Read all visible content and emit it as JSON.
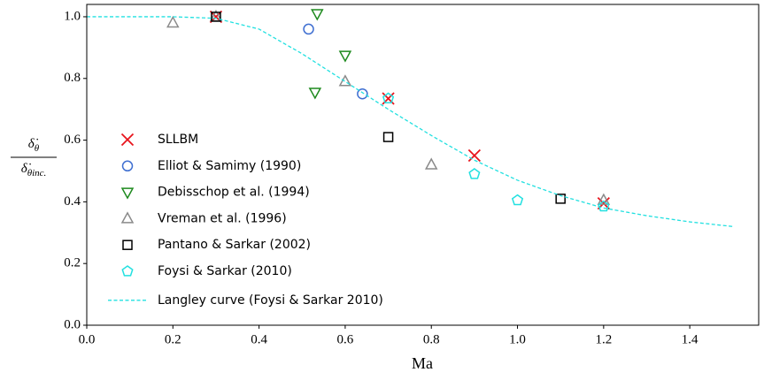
{
  "chart_data": {
    "type": "scatter",
    "xlabel": "Ma",
    "ylabel": {
      "numerator": [
        "δ̇",
        "θ"
      ],
      "denominator": [
        "δ̇",
        "θinc."
      ]
    },
    "xlim": [
      0,
      1.56
    ],
    "ylim": [
      0,
      1.04
    ],
    "xticks": [
      {
        "value": 0,
        "label": "0.0"
      },
      {
        "value": 0.2,
        "label": "0.2"
      },
      {
        "value": 0.4,
        "label": "0.4"
      },
      {
        "value": 0.6,
        "label": "0.6"
      },
      {
        "value": 0.8,
        "label": "0.8"
      },
      {
        "value": 1.0,
        "label": "1.0"
      },
      {
        "value": 1.2,
        "label": "1.2"
      },
      {
        "value": 1.4,
        "label": "1.4"
      }
    ],
    "yticks": [
      {
        "value": 0,
        "label": "0.0"
      },
      {
        "value": 0.2,
        "label": "0.2"
      },
      {
        "value": 0.4,
        "label": "0.4"
      },
      {
        "value": 0.6,
        "label": "0.6"
      },
      {
        "value": 0.8,
        "label": "0.8"
      },
      {
        "value": 1.0,
        "label": "1.0"
      }
    ],
    "legend": "center left",
    "series": [
      {
        "name": "SLLBM",
        "color": "#e8141c",
        "marker": "x",
        "x": [
          0.3,
          0.7,
          0.9,
          1.2
        ],
        "values": [
          1.0,
          0.735,
          0.55,
          0.395
        ]
      },
      {
        "name": "Elliot & Samimy (1990)",
        "color": "#3f6fd1",
        "marker": "circle",
        "x": [
          0.515,
          0.64
        ],
        "values": [
          0.96,
          0.75
        ]
      },
      {
        "name": "Debisschop et al. (1994)",
        "color": "#1e8a1e",
        "marker": "triangle-down",
        "x": [
          0.535,
          0.53,
          0.6
        ],
        "values": [
          1.01,
          0.755,
          0.875
        ]
      },
      {
        "name": "Vreman et al. (1996)",
        "color": "#8a8a8a",
        "marker": "triangle",
        "x": [
          0.2,
          0.3,
          0.6,
          0.8,
          1.2
        ],
        "values": [
          0.98,
          1.0,
          0.79,
          0.52,
          0.405
        ]
      },
      {
        "name": "Pantano & Sarkar (2002)",
        "color": "#000000",
        "marker": "square",
        "x": [
          0.3,
          0.7,
          1.1
        ],
        "values": [
          1.0,
          0.61,
          0.41
        ]
      },
      {
        "name": "Foysi & Sarkar (2010)",
        "color": "#22e0e0",
        "marker": "pentagon",
        "x": [
          0.7,
          0.9,
          1.0,
          1.2
        ],
        "values": [
          0.735,
          0.49,
          0.405,
          0.385
        ]
      },
      {
        "name": "Langley curve (Foysi & Sarkar 2010)",
        "color": "#22e0e0",
        "marker": "line",
        "x": [
          0,
          0.1,
          0.2,
          0.3,
          0.4,
          0.5,
          0.6,
          0.7,
          0.8,
          0.9,
          1.0,
          1.1,
          1.2,
          1.3,
          1.4,
          1.5
        ],
        "values": [
          1.0,
          1.0,
          1.0,
          0.995,
          0.96,
          0.88,
          0.79,
          0.7,
          0.615,
          0.535,
          0.47,
          0.42,
          0.38,
          0.355,
          0.335,
          0.32
        ]
      }
    ]
  }
}
